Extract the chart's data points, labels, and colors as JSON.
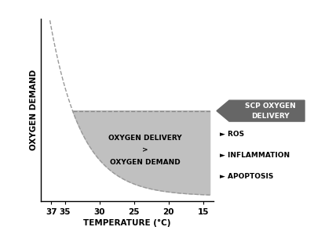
{
  "xlabel": "TEMPERATURE (°C)",
  "ylabel": "OXYGEN DEMAND",
  "x_ticks": [
    37,
    35,
    30,
    25,
    20,
    15
  ],
  "x_min": 13.5,
  "x_max": 38.5,
  "y_min": 0,
  "y_max": 1.05,
  "scp_level": 0.52,
  "curve_A": 0.97,
  "curve_B": 0.22,
  "curve_t0": 37.0,
  "curve_C": 0.03,
  "curve_color": "#999999",
  "shade_color": "#c0c0c0",
  "arrow_color": "#666666",
  "dashed_color": "#888888",
  "background_color": "#ffffff",
  "annotations": [
    "► ROS",
    "► INFLAMMATION",
    "► APOPTOSIS"
  ],
  "center_text_line1": "OXYGEN DELIVERY",
  "center_text_line2": ">",
  "center_text_line3": "OXYGEN DEMAND",
  "scp_label_line1": "SCP OXYGEN",
  "scp_label_line2": "DELIVERY"
}
